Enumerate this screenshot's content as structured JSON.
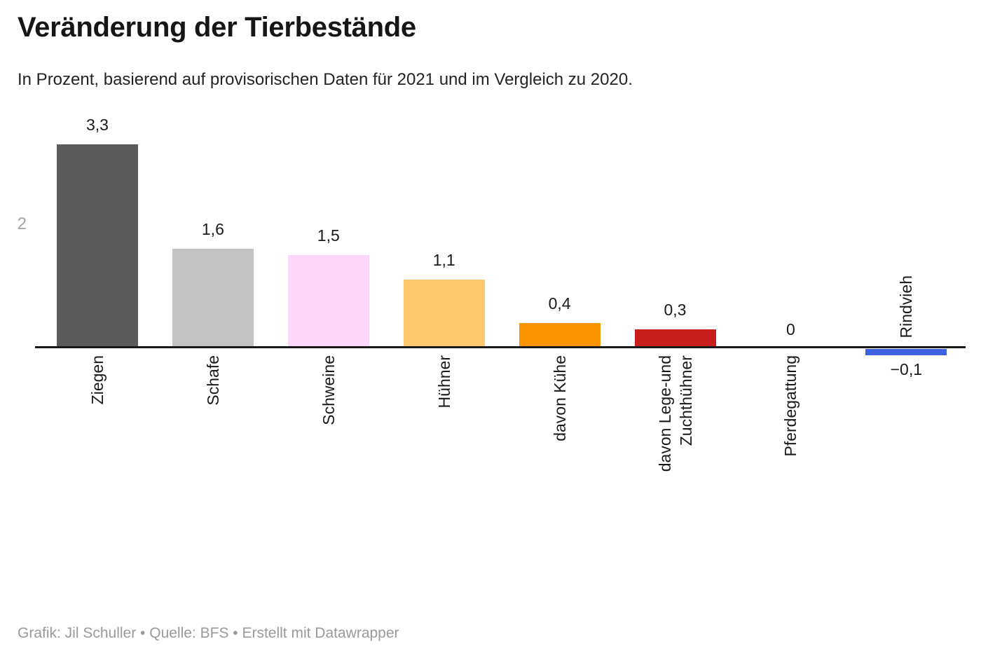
{
  "header": {
    "title": "Veränderung der Tierbestände",
    "subtitle": "In Prozent, basierend auf provisorischen Daten für 2021 und im Vergleich zu 2020."
  },
  "footer": {
    "text": "Grafik: Jil Schuller • Quelle: BFS • Erstellt mit Datawrapper"
  },
  "chart_data": {
    "type": "bar",
    "title": "Veränderung der Tierbestände",
    "subtitle": "In Prozent, basierend auf provisorischen Daten für 2021 und im Vergleich zu 2020.",
    "unit": "Prozent",
    "grid": "off",
    "legend": "none",
    "ylim": [
      -0.4,
      3.5
    ],
    "y_axis_ticks": [
      {
        "value": 2,
        "label": "2"
      }
    ],
    "categories": [
      "Ziegen",
      "Schafe",
      "Schweine",
      "Hühner",
      "davon Kühe",
      "davon Lege-und Zuchthühner",
      "Pferdegattung",
      "Rindvieh"
    ],
    "values": [
      3.3,
      1.6,
      1.5,
      1.1,
      0.4,
      0.3,
      0,
      -0.1
    ],
    "bars": [
      {
        "category": "Ziegen",
        "value": 3.3,
        "value_label": "3,3",
        "color": "#5b5b5d"
      },
      {
        "category": "Schafe",
        "value": 1.6,
        "value_label": "1,6",
        "color": "#c3c3c3"
      },
      {
        "category": "Schweine",
        "value": 1.5,
        "value_label": "1,5",
        "color": "#fcd7fa"
      },
      {
        "category": "Hühner",
        "value": 1.1,
        "value_label": "1,1",
        "color": "#fcc96d"
      },
      {
        "category": "davon Kühe",
        "value": 0.4,
        "value_label": "0,4",
        "color": "#f99300"
      },
      {
        "category": "davon Lege-und Zuchthühner",
        "category_lines": [
          "davon Lege-und",
          "Zuchthühner"
        ],
        "value": 0.3,
        "value_label": "0,3",
        "color": "#c91f1c"
      },
      {
        "category": "Pferdegattung",
        "value": 0,
        "value_label": "0",
        "color": null
      },
      {
        "category": "Rindvieh",
        "value": -0.1,
        "value_label": "−0,1",
        "color": "#3e61e1"
      }
    ]
  }
}
